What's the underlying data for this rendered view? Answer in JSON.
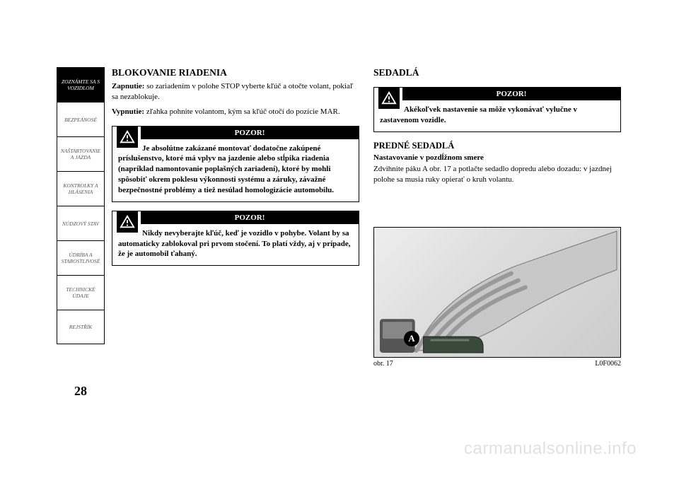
{
  "sidebar": {
    "tabs": [
      {
        "label": "ZOZNÁMTE SA S\nVOZIDLOM",
        "active": true
      },
      {
        "label": "BEZPEÁNOSÉ",
        "active": false
      },
      {
        "label": "NAŠTARTOVANIE\nA JAZDA",
        "active": false
      },
      {
        "label": "KONTROLKY A\nHLÁSENIA",
        "active": false
      },
      {
        "label": "NÚDZOVÝ STAV",
        "active": false
      },
      {
        "label": "ÚDRÍBA A\nSTAROSTLIVOSÉ",
        "active": false
      },
      {
        "label": "TECHNICKÉ\nÚDAJE",
        "active": false
      },
      {
        "label": "REJSTŘÍK",
        "active": false
      }
    ]
  },
  "page_number": "28",
  "left": {
    "heading": "BLOKOVANIE RIADENIA",
    "p1_b": "Zapnutie:",
    "p1": " so zariadením v polohe STOP vyberte kľúč a otočte volant, pokiaľ sa nezablokuje.",
    "p2_b": "Vypnutie:",
    "p2": " zľahka pohnite volantom, kým sa kľúč otočí do pozície MAR.",
    "warn1_title": "POZOR!",
    "warn1_body": "Je absolútne zakázané montovať dodatočne zakúpené príslušenstvo, ktoré má vplyv na jazdenie alebo stĺpika riadenia (napríklad namontovanie poplašných zariadení), ktoré by mohli spôsobiť okrem poklesu výkonnosti systému a záruky, závažné bezpečnostné problémy a tiež nesúlad homologizácie automobilu.",
    "warn2_title": "POZOR!",
    "warn2_body": "Nikdy nevyberajte kľúč, keď je vozidlo v pohybe. Volant by sa automaticky zablokoval pri prvom stočení. To platí vždy, aj v prípade, že je automobil ťahaný."
  },
  "right": {
    "heading": "SEDADLÁ",
    "warn_title": "POZOR!",
    "warn_body": "Akékoľvek nastavenie sa môže vykonávať vylučne v zastavenom vozidle.",
    "sub_heading": "PREDNÉ SEDADLÁ",
    "sub2": "Nastavovanie v pozdĺžnom smere",
    "p": "Zdvihnite páku A obr. 17 a potlačte sedadlo dopredu alebo dozadu: v jazdnej polohe sa musia ruky opierať o kruh volantu.",
    "fig_letter": "A",
    "fig_caption_left": "obr. 17",
    "fig_caption_right": "L0F0062"
  },
  "watermark": "carmanualsonline.info",
  "colors": {
    "black": "#000000",
    "white": "#ffffff",
    "watermark": "rgba(0,0,0,0.12)",
    "tab_inactive_text": "#555555"
  }
}
